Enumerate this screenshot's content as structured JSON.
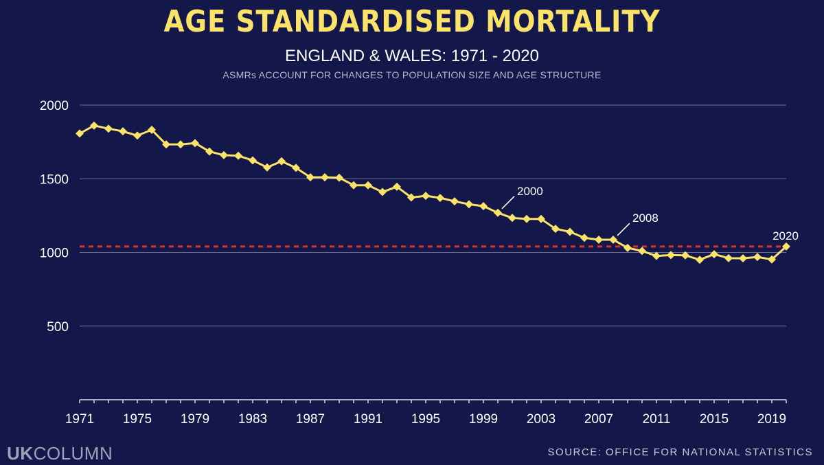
{
  "chart_data": {
    "type": "line",
    "title": "AGE STANDARDISED MORTALITY",
    "subtitle": "ENGLAND & WALES: 1971 - 2020",
    "note": "ASMRs ACCOUNT FOR CHANGES TO POPULATION SIZE AND AGE STRUCTURE",
    "xlabel": "",
    "ylabel": "",
    "xlim": [
      1971,
      2020
    ],
    "ylim": [
      0,
      2000
    ],
    "y_ticks": [
      500,
      1000,
      1500,
      2000
    ],
    "x_ticks": [
      1971,
      1975,
      1979,
      1983,
      1987,
      1991,
      1995,
      1999,
      2003,
      2007,
      2011,
      2015,
      2019
    ],
    "grid": "horizontal",
    "reference_line": {
      "value": 1040,
      "style": "dashed",
      "color": "#d9342b"
    },
    "annotations": [
      {
        "year": 2000,
        "text": "2000"
      },
      {
        "year": 2008,
        "text": "2008"
      },
      {
        "year": 2020,
        "text": "2020"
      }
    ],
    "series": [
      {
        "name": "",
        "color": "#fbe36a",
        "x": [
          1971,
          1972,
          1973,
          1974,
          1975,
          1976,
          1977,
          1978,
          1979,
          1980,
          1981,
          1982,
          1983,
          1984,
          1985,
          1986,
          1987,
          1988,
          1989,
          1990,
          1991,
          1992,
          1993,
          1994,
          1995,
          1996,
          1997,
          1998,
          1999,
          2000,
          2001,
          2002,
          2003,
          2004,
          2005,
          2006,
          2007,
          2008,
          2009,
          2010,
          2011,
          2012,
          2013,
          2014,
          2015,
          2016,
          2017,
          2018,
          2019,
          2020
        ],
        "values": [
          1807,
          1861,
          1840,
          1822,
          1793,
          1832,
          1733,
          1733,
          1742,
          1685,
          1660,
          1656,
          1625,
          1577,
          1619,
          1574,
          1510,
          1510,
          1507,
          1456,
          1456,
          1410,
          1446,
          1373,
          1384,
          1370,
          1347,
          1327,
          1314,
          1269,
          1234,
          1227,
          1227,
          1160,
          1140,
          1099,
          1086,
          1086,
          1031,
          1010,
          976,
          982,
          980,
          950,
          988,
          961,
          960,
          969,
          952,
          1040
        ]
      }
    ]
  },
  "footer": {
    "logo_bold": "UK",
    "logo_light": "COLUMN",
    "source": "SOURCE: OFFICE FOR NATIONAL STATISTICS"
  }
}
